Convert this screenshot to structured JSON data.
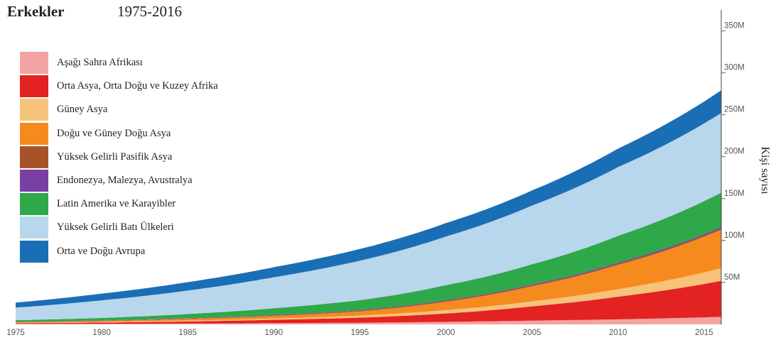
{
  "chart_data": {
    "type": "area",
    "stacked": true,
    "title": "Erkekler",
    "subtitle": "1975-2016",
    "ylabel": "Kişi sayısı",
    "xlabel": "",
    "x_ticks": [
      "1975",
      "1980",
      "1985",
      "1990",
      "1995",
      "2000",
      "2005",
      "2010",
      "2015"
    ],
    "y_ticks": [
      "50M",
      "100M",
      "150M",
      "200M",
      "250M",
      "300M",
      "350M"
    ],
    "xlim": [
      1975,
      2016
    ],
    "ylim": [
      0,
      375
    ],
    "legend_position": "top-left",
    "x": [
      1975,
      1980,
      1985,
      1990,
      1995,
      2000,
      2005,
      2010,
      2016
    ],
    "series": [
      {
        "name": "Aşağı Sahra Afrikası",
        "color": "#f4a3a3",
        "values": [
          0.5,
          0.7,
          1,
          1.5,
          2,
          3,
          4.5,
          6,
          9
        ]
      },
      {
        "name": "Orta Asya, Orta Doğu ve Kuzey Afrika",
        "color": "#e32222",
        "values": [
          1,
          1.5,
          2.5,
          4,
          6,
          10,
          17,
          27,
          43
        ]
      },
      {
        "name": "Güney Asya",
        "color": "#f7c27a",
        "values": [
          0.5,
          0.8,
          1,
          1.5,
          2.5,
          4,
          6,
          9,
          15
        ]
      },
      {
        "name": "Doğu ve Güney Doğu  Asya",
        "color": "#f58a1f",
        "values": [
          0.5,
          1,
          2,
          3,
          5,
          10,
          18,
          29,
          46
        ]
      },
      {
        "name": "Yüksek Gelirli Pasifik Asya",
        "color": "#a6532a",
        "values": [
          0.3,
          0.4,
          0.5,
          0.7,
          0.8,
          1,
          1.2,
          1.4,
          1.6
        ]
      },
      {
        "name": "Endonezya, Malezya, Avustralya",
        "color": "#7a3fa3",
        "values": [
          0.2,
          0.3,
          0.4,
          0.5,
          0.6,
          0.8,
          1,
          1.2,
          1.5
        ]
      },
      {
        "name": "Latin Amerika ve Karayibler",
        "color": "#2fa84a",
        "values": [
          2,
          3,
          5,
          8,
          12,
          18,
          24,
          32,
          41
        ]
      },
      {
        "name": "Yüksek Gelirli Batı Ülkeleri",
        "color": "#b8d6ec",
        "values": [
          15,
          21,
          28,
          37,
          47,
          58,
          70,
          82,
          95
        ]
      },
      {
        "name": "Orta ve Doğu Avrupa",
        "color": "#1a6eb5",
        "values": [
          6,
          8,
          10,
          12,
          14,
          16,
          18,
          22,
          27
        ]
      }
    ]
  }
}
